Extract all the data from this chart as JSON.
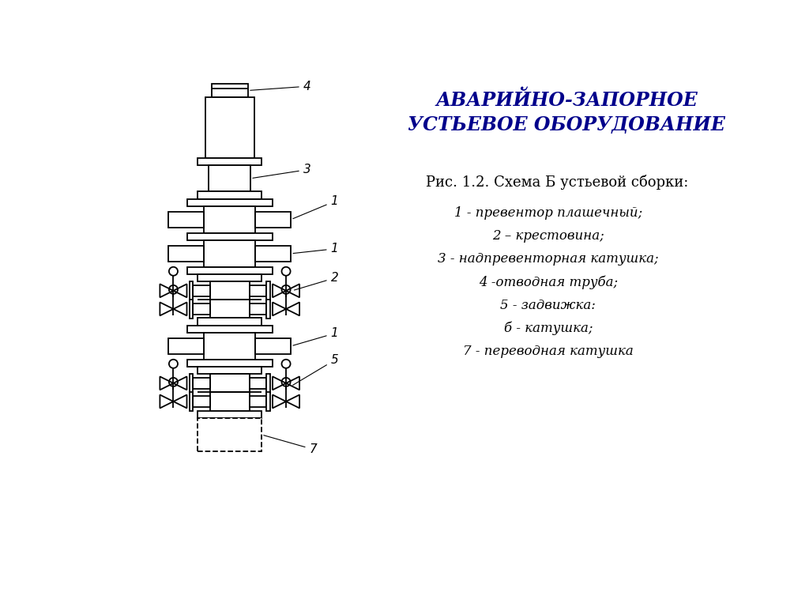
{
  "title_line1": "АВАРИЙНО-ЗАПОРНОЕ",
  "title_line2": "УСТЬЕВОЕ ОБОРУДОВАНИЕ",
  "title_color": "#00008B",
  "caption": "Рис. 1.2. Схема Б устьевой сборки:",
  "legend_lines": [
    "1 - превентор плашечный;",
    "2 – крестовина;",
    "3 - надпревенторная катушка;",
    "4 -отводная труба;",
    "5 - задвижка:",
    "б - катушка;",
    "7 - переводная катушка"
  ],
  "bg_color": "#FFFFFF",
  "line_color": "#000000"
}
